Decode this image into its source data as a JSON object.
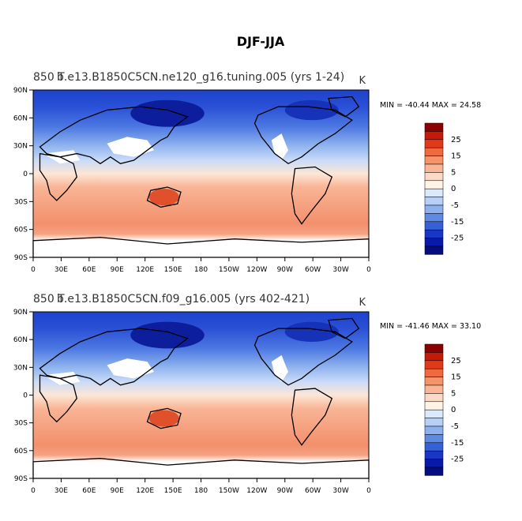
{
  "figure": {
    "title": "DJF-JJA",
    "unit": "K",
    "lat_ticks": [
      "90N",
      "60N",
      "30N",
      "0",
      "30S",
      "60S",
      "90S"
    ],
    "lon_ticks": [
      "0",
      "30E",
      "60E",
      "90E",
      "120E",
      "150E",
      "180",
      "150W",
      "120W",
      "90W",
      "60W",
      "30W",
      "0"
    ],
    "legend_labels": [
      "25",
      "15",
      "5",
      "0",
      "-5",
      "-15",
      "-25"
    ],
    "legend_colors": [
      "#8b0000",
      "#c41a0a",
      "#e03a1a",
      "#f06a40",
      "#f5936a",
      "#f9b596",
      "#fcd9c4",
      "#fff3e6",
      "#dce8fb",
      "#b9d0f6",
      "#8db0ee",
      "#5f8ae4",
      "#3560d8",
      "#1836c6",
      "#0a1aa8",
      "#040c80"
    ]
  },
  "panels": [
    {
      "id": "top",
      "left_title": "850 T",
      "case_title": "b.e13.B1850C5CN.ne120_g16.tuning.005 (yrs 1-24)",
      "stats": "MIN = -40.44   MAX =  24.58"
    },
    {
      "id": "bottom",
      "left_title": "850 T",
      "case_title": "b.e13.B1850C5CN.f09_g16.005 (yrs 402-421)",
      "stats": "MIN = -41.46   MAX =  33.10"
    }
  ]
}
